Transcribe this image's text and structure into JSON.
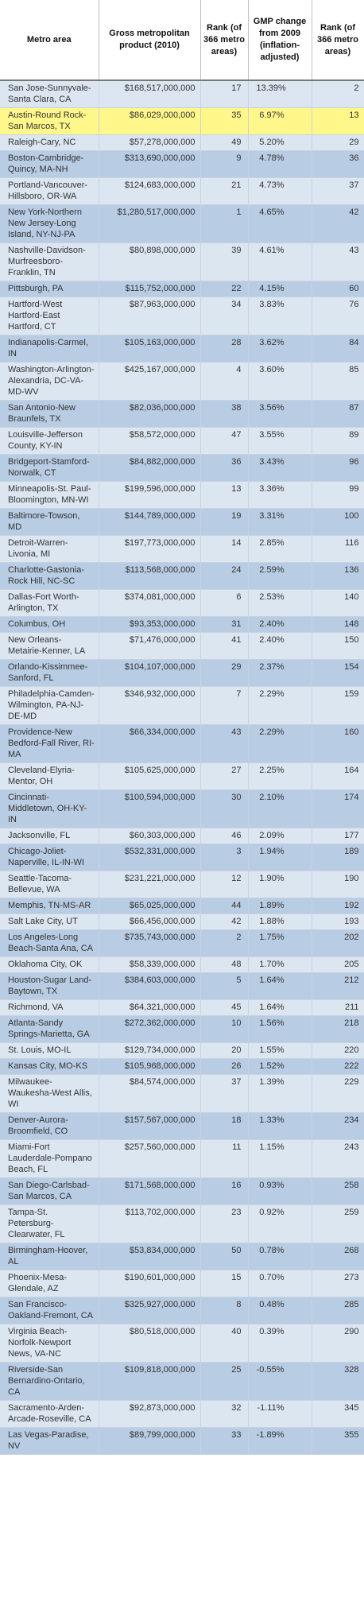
{
  "headers": [
    "Metro area",
    "Gross metropolitan product (2010)",
    "Rank (of 366 metro areas)",
    "GMP change from 2009 (inflation-adjusted)",
    "Rank (of 366 metro areas)"
  ],
  "highlight_color": "#fff78a",
  "rows": [
    {
      "metro": "San Jose-Sunnyvale-Santa Clara, CA",
      "gmp": "$168,517,000,000",
      "rank": "17",
      "change": "13.39%",
      "change_rank": "2"
    },
    {
      "metro": "Austin-Round Rock-San Marcos, TX",
      "gmp": "$86,029,000,000",
      "rank": "35",
      "change": "6.97%",
      "change_rank": "13",
      "highlight": true
    },
    {
      "metro": "Raleigh-Cary, NC",
      "gmp": "$57,278,000,000",
      "rank": "49",
      "change": "5.20%",
      "change_rank": "29"
    },
    {
      "metro": "Boston-Cambridge-Quincy, MA-NH",
      "gmp": "$313,690,000,000",
      "rank": "9",
      "change": "4.78%",
      "change_rank": "36"
    },
    {
      "metro": "Portland-Vancouver-Hillsboro, OR-WA",
      "gmp": "$124,683,000,000",
      "rank": "21",
      "change": "4.73%",
      "change_rank": "37"
    },
    {
      "metro": "New York-Northern New Jersey-Long Island, NY-NJ-PA",
      "gmp": "$1,280,517,000,000",
      "rank": "1",
      "change": "4.65%",
      "change_rank": "42"
    },
    {
      "metro": "Nashville-Davidson-Murfreesboro-Franklin, TN",
      "gmp": "$80,898,000,000",
      "rank": "39",
      "change": "4.61%",
      "change_rank": "43"
    },
    {
      "metro": "Pittsburgh, PA",
      "gmp": "$115,752,000,000",
      "rank": "22",
      "change": "4.15%",
      "change_rank": "60"
    },
    {
      "metro": "Hartford-West Hartford-East Hartford, CT",
      "gmp": "$87,963,000,000",
      "rank": "34",
      "change": "3.83%",
      "change_rank": "76"
    },
    {
      "metro": "Indianapolis-Carmel, IN",
      "gmp": "$105,163,000,000",
      "rank": "28",
      "change": "3.62%",
      "change_rank": "84"
    },
    {
      "metro": "Washington-Arlington-Alexandria, DC-VA-MD-WV",
      "gmp": "$425,167,000,000",
      "rank": "4",
      "change": "3.60%",
      "change_rank": "85"
    },
    {
      "metro": "San Antonio-New Braunfels, TX",
      "gmp": "$82,036,000,000",
      "rank": "38",
      "change": "3.56%",
      "change_rank": "87"
    },
    {
      "metro": "Louisville-Jefferson County, KY-IN",
      "gmp": "$58,572,000,000",
      "rank": "47",
      "change": "3.55%",
      "change_rank": "89"
    },
    {
      "metro": "Bridgeport-Stamford-Norwalk, CT",
      "gmp": "$84,882,000,000",
      "rank": "36",
      "change": "3.43%",
      "change_rank": "96"
    },
    {
      "metro": "Minneapolis-St. Paul-Bloomington, MN-WI",
      "gmp": "$199,596,000,000",
      "rank": "13",
      "change": "3.36%",
      "change_rank": "99"
    },
    {
      "metro": "Baltimore-Towson, MD",
      "gmp": "$144,789,000,000",
      "rank": "19",
      "change": "3.31%",
      "change_rank": "100"
    },
    {
      "metro": "Detroit-Warren-Livonia, MI",
      "gmp": "$197,773,000,000",
      "rank": "14",
      "change": "2.85%",
      "change_rank": "116"
    },
    {
      "metro": "Charlotte-Gastonia-Rock Hill, NC-SC",
      "gmp": "$113,568,000,000",
      "rank": "24",
      "change": "2.59%",
      "change_rank": "136"
    },
    {
      "metro": "Dallas-Fort Worth-Arlington, TX",
      "gmp": "$374,081,000,000",
      "rank": "6",
      "change": "2.53%",
      "change_rank": "140"
    },
    {
      "metro": "Columbus, OH",
      "gmp": "$93,353,000,000",
      "rank": "31",
      "change": "2.40%",
      "change_rank": "148"
    },
    {
      "metro": "New Orleans-Metairie-Kenner, LA",
      "gmp": "$71,476,000,000",
      "rank": "41",
      "change": "2.40%",
      "change_rank": "150"
    },
    {
      "metro": "Orlando-Kissimmee-Sanford, FL",
      "gmp": "$104,107,000,000",
      "rank": "29",
      "change": "2.37%",
      "change_rank": "154"
    },
    {
      "metro": "Philadelphia-Camden-Wilmington, PA-NJ-DE-MD",
      "gmp": "$346,932,000,000",
      "rank": "7",
      "change": "2.29%",
      "change_rank": "159"
    },
    {
      "metro": "Providence-New Bedford-Fall River, RI-MA",
      "gmp": "$66,334,000,000",
      "rank": "43",
      "change": "2.29%",
      "change_rank": "160"
    },
    {
      "metro": "Cleveland-Elyria-Mentor, OH",
      "gmp": "$105,625,000,000",
      "rank": "27",
      "change": "2.25%",
      "change_rank": "164"
    },
    {
      "metro": "Cincinnati-Middletown, OH-KY-IN",
      "gmp": "$100,594,000,000",
      "rank": "30",
      "change": "2.10%",
      "change_rank": "174"
    },
    {
      "metro": "Jacksonville, FL",
      "gmp": "$60,303,000,000",
      "rank": "46",
      "change": "2.09%",
      "change_rank": "177"
    },
    {
      "metro": "Chicago-Joliet-Naperville, IL-IN-WI",
      "gmp": "$532,331,000,000",
      "rank": "3",
      "change": "1.94%",
      "change_rank": "189"
    },
    {
      "metro": "Seattle-Tacoma-Bellevue, WA",
      "gmp": "$231,221,000,000",
      "rank": "12",
      "change": "1.90%",
      "change_rank": "190"
    },
    {
      "metro": "Memphis, TN-MS-AR",
      "gmp": "$65,025,000,000",
      "rank": "44",
      "change": "1.89%",
      "change_rank": "192"
    },
    {
      "metro": "Salt Lake City, UT",
      "gmp": "$66,456,000,000",
      "rank": "42",
      "change": "1.88%",
      "change_rank": "193"
    },
    {
      "metro": "Los Angeles-Long Beach-Santa Ana, CA",
      "gmp": "$735,743,000,000",
      "rank": "2",
      "change": "1.75%",
      "change_rank": "202"
    },
    {
      "metro": "Oklahoma City, OK",
      "gmp": "$58,339,000,000",
      "rank": "48",
      "change": "1.70%",
      "change_rank": "205"
    },
    {
      "metro": "Houston-Sugar Land-Baytown, TX",
      "gmp": "$384,603,000,000",
      "rank": "5",
      "change": "1.64%",
      "change_rank": "212"
    },
    {
      "metro": "Richmond, VA",
      "gmp": "$64,321,000,000",
      "rank": "45",
      "change": "1.64%",
      "change_rank": "211"
    },
    {
      "metro": "Atlanta-Sandy Springs-Marietta, GA",
      "gmp": "$272,362,000,000",
      "rank": "10",
      "change": "1.56%",
      "change_rank": "218"
    },
    {
      "metro": "St. Louis, MO-IL",
      "gmp": "$129,734,000,000",
      "rank": "20",
      "change": "1.55%",
      "change_rank": "220"
    },
    {
      "metro": "Kansas City, MO-KS",
      "gmp": "$105,968,000,000",
      "rank": "26",
      "change": "1.52%",
      "change_rank": "222"
    },
    {
      "metro": "Milwaukee-Waukesha-West Allis, WI",
      "gmp": "$84,574,000,000",
      "rank": "37",
      "change": "1.39%",
      "change_rank": "229"
    },
    {
      "metro": "Denver-Aurora-Broomfield, CO",
      "gmp": "$157,567,000,000",
      "rank": "18",
      "change": "1.33%",
      "change_rank": "234"
    },
    {
      "metro": "Miami-Fort Lauderdale-Pompano Beach, FL",
      "gmp": "$257,560,000,000",
      "rank": "11",
      "change": "1.15%",
      "change_rank": "243"
    },
    {
      "metro": "San Diego-Carlsbad-San Marcos, CA",
      "gmp": "$171,568,000,000",
      "rank": "16",
      "change": "0.93%",
      "change_rank": "258"
    },
    {
      "metro": "Tampa-St. Petersburg-Clearwater, FL",
      "gmp": "$113,702,000,000",
      "rank": "23",
      "change": "0.92%",
      "change_rank": "259"
    },
    {
      "metro": "Birmingham-Hoover, AL",
      "gmp": "$53,834,000,000",
      "rank": "50",
      "change": "0.78%",
      "change_rank": "268"
    },
    {
      "metro": "Phoenix-Mesa-Glendale, AZ",
      "gmp": "$190,601,000,000",
      "rank": "15",
      "change": "0.70%",
      "change_rank": "273"
    },
    {
      "metro": "San Francisco-Oakland-Fremont, CA",
      "gmp": "$325,927,000,000",
      "rank": "8",
      "change": "0.48%",
      "change_rank": "285"
    },
    {
      "metro": "Virginia Beach-Norfolk-Newport News, VA-NC",
      "gmp": "$80,518,000,000",
      "rank": "40",
      "change": "0.39%",
      "change_rank": "290"
    },
    {
      "metro": "Riverside-San Bernardino-Ontario, CA",
      "gmp": "$109,818,000,000",
      "rank": "25",
      "change": "-0.55%",
      "change_rank": "328"
    },
    {
      "metro": "Sacramento-Arden-Arcade-Roseville, CA",
      "gmp": "$92,873,000,000",
      "rank": "32",
      "change": "-1.11%",
      "change_rank": "345"
    },
    {
      "metro": "Las Vegas-Paradise, NV",
      "gmp": "$89,799,000,000",
      "rank": "33",
      "change": "-1.89%",
      "change_rank": "355"
    }
  ]
}
